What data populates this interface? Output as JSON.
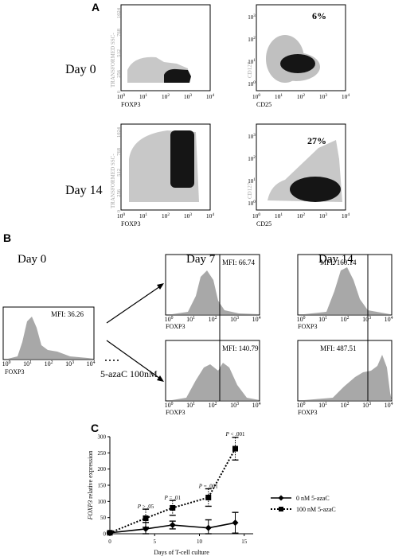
{
  "panel_a": {
    "letter": "A",
    "rows": [
      {
        "day": "Day 0",
        "percent": "6%"
      },
      {
        "day": "Day 14",
        "percent": "27%"
      }
    ],
    "left_ylabel": "TRANSFORMED SSC-",
    "left_xlabel": "FOXP3",
    "right_ylabel": "CD127",
    "right_xlabel": "CD25",
    "left_yticks": [
      "1024",
      "768",
      "512",
      "256",
      "0"
    ],
    "log_ticks": [
      "10",
      "10",
      "10",
      "10",
      "10"
    ],
    "log_exps": [
      "0",
      "1",
      "2",
      "3",
      "4"
    ],
    "right_yticks_exp": [
      "3",
      "2",
      "1",
      "0"
    ]
  },
  "panel_b": {
    "letter": "B",
    "cols": [
      "Day 0",
      "Day 7",
      "Day 14"
    ],
    "xlabel": "FOXP3",
    "treatment_label": "5-azaC 100nM",
    "histograms": [
      {
        "mfi": "MFI: 36.26"
      },
      {
        "mfi": "MFI: 66.74"
      },
      {
        "mfi": "MFI: 160.14"
      },
      {
        "mfi": "MFI: 140.79"
      },
      {
        "mfi": "MFI: 487.51"
      }
    ]
  },
  "panel_c": {
    "letter": "C"
  },
  "chart_data": {
    "type": "line",
    "title": "",
    "xlabel": "Days of T-cell culture",
    "ylabel": "FOXP3 relative expression",
    "xlim": [
      0,
      16
    ],
    "ylim": [
      0,
      300
    ],
    "xticks": [
      "0",
      "5",
      "10",
      "15"
    ],
    "yticks": [
      "0",
      "50",
      "100",
      "150",
      "200",
      "250",
      "300"
    ],
    "series": [
      {
        "name": "0 nM 5-azaC",
        "x": [
          0,
          4,
          7,
          11,
          14
        ],
        "values": [
          3,
          15,
          27,
          18,
          34
        ],
        "err": [
          2,
          20,
          12,
          25,
          32
        ]
      },
      {
        "name": "100 nM 5-azaC",
        "x": [
          0,
          4,
          7,
          11,
          14
        ],
        "values": [
          3,
          48,
          80,
          112,
          263
        ],
        "err": [
          2,
          28,
          23,
          27,
          35
        ]
      }
    ],
    "annotations": [
      {
        "x": 4,
        "y": 79,
        "text": "P > .05"
      },
      {
        "x": 7,
        "y": 106,
        "text": "P = .01"
      },
      {
        "x": 11,
        "y": 142,
        "text": "P = .001"
      },
      {
        "x": 14,
        "y": 303,
        "text": "P < .001"
      }
    ],
    "legend": "right",
    "grid": false
  }
}
